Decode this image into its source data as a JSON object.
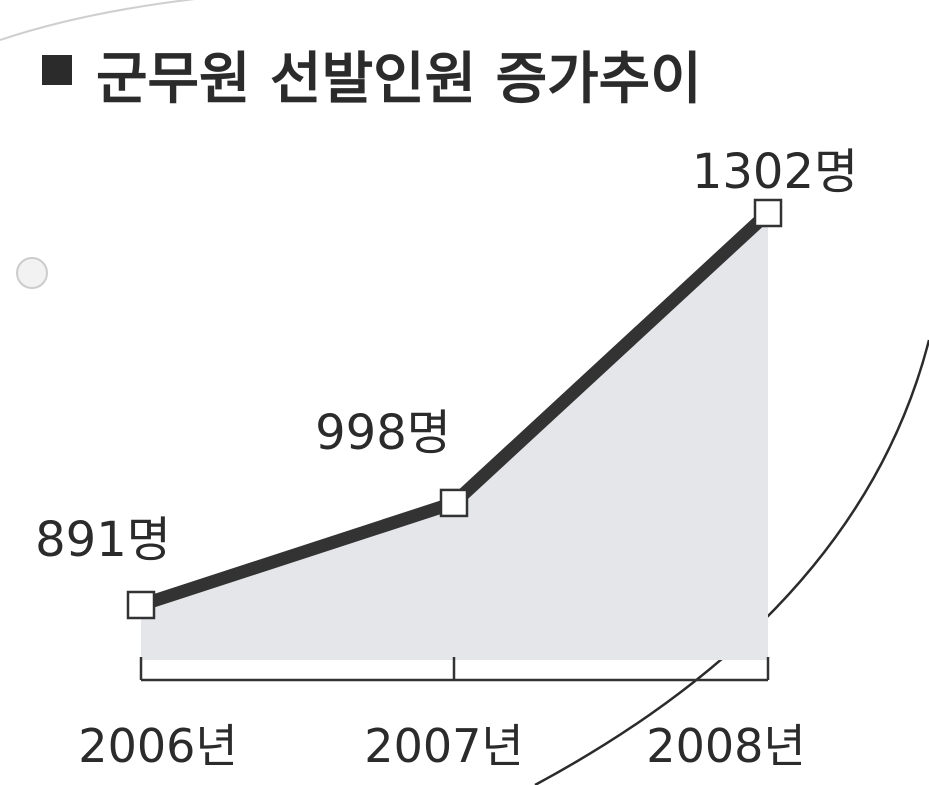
{
  "chart_data": {
    "type": "area",
    "title": "군무원 선발인원 증가추이",
    "categories": [
      "2006년",
      "2007년",
      "2008년"
    ],
    "series": [
      {
        "values": [
          891,
          998,
          1302
        ],
        "labels": [
          "891명",
          "998명",
          "1302명"
        ]
      }
    ],
    "xlabel": "",
    "ylabel": "",
    "grid": false,
    "legend": "none",
    "colors": {
      "line": "#333333",
      "fill": "#e4e6ea",
      "marker_fill": "#ffffff",
      "text": "#2b2b2b",
      "axis": "#333333"
    }
  }
}
